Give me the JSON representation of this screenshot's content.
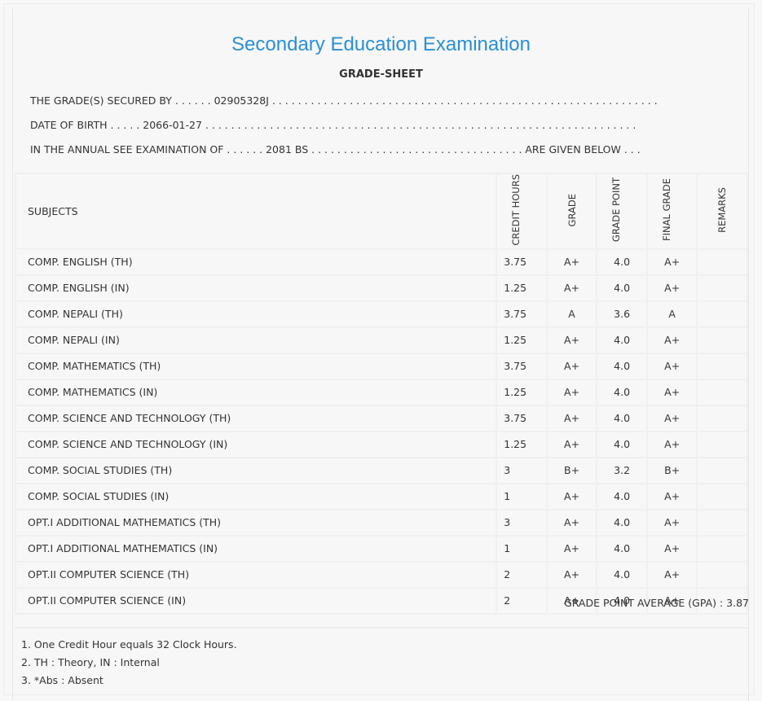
{
  "title": "Secondary Education Examination",
  "subtitle": "GRADE-SHEET",
  "lines": [
    "THE GRADE(S) SECURED BY . . . . . . 02905328J . . . . . . . . . . . . . . . . . . . . . . . . . . . . . . . . . . . . . . . . . . . . . . . . . . . . . . . . . . . .",
    "DATE OF BIRTH . . . . . 2066-01-27 . . . . . . . . . . . . . . . . . . . . . . . . . . . . . . . . . . . . . . . . . . . . . . . . . . . . . . . . . . . . . . . . . . .",
    "IN THE ANNUAL SEE EXAMINATION OF . . . . . . 2081 BS . . . . . . . . . . . . . . . . . . . . . . . . . . . . . . . . . ARE GIVEN BELOW . . ."
  ],
  "headers": {
    "subjects": "SUBJECTS",
    "credit_hours": "CREDIT HOURS",
    "grade": "GRADE",
    "grade_point": "GRADE POINT",
    "final_grade": "FINAL GRADE",
    "remarks": "REMARKS"
  },
  "rows": [
    {
      "subject": "COMP. ENGLISH (TH)",
      "credit": "3.75",
      "grade": "A+",
      "point": "4.0",
      "final": "A+",
      "remarks": ""
    },
    {
      "subject": "COMP. ENGLISH (IN)",
      "credit": "1.25",
      "grade": "A+",
      "point": "4.0",
      "final": "A+",
      "remarks": ""
    },
    {
      "subject": "COMP. NEPALI (TH)",
      "credit": "3.75",
      "grade": "A",
      "point": "3.6",
      "final": "A",
      "remarks": ""
    },
    {
      "subject": "COMP. NEPALI (IN)",
      "credit": "1.25",
      "grade": "A+",
      "point": "4.0",
      "final": "A+",
      "remarks": ""
    },
    {
      "subject": "COMP. MATHEMATICS (TH)",
      "credit": "3.75",
      "grade": "A+",
      "point": "4.0",
      "final": "A+",
      "remarks": ""
    },
    {
      "subject": "COMP. MATHEMATICS (IN)",
      "credit": "1.25",
      "grade": "A+",
      "point": "4.0",
      "final": "A+",
      "remarks": ""
    },
    {
      "subject": "COMP. SCIENCE AND TECHNOLOGY (TH)",
      "credit": "3.75",
      "grade": "A+",
      "point": "4.0",
      "final": "A+",
      "remarks": ""
    },
    {
      "subject": "COMP. SCIENCE AND TECHNOLOGY (IN)",
      "credit": "1.25",
      "grade": "A+",
      "point": "4.0",
      "final": "A+",
      "remarks": ""
    },
    {
      "subject": "COMP. SOCIAL STUDIES (TH)",
      "credit": "3",
      "grade": "B+",
      "point": "3.2",
      "final": "B+",
      "remarks": ""
    },
    {
      "subject": "COMP. SOCIAL STUDIES (IN)",
      "credit": "1",
      "grade": "A+",
      "point": "4.0",
      "final": "A+",
      "remarks": ""
    },
    {
      "subject": "OPT.I ADDITIONAL MATHEMATICS (TH)",
      "credit": "3",
      "grade": "A+",
      "point": "4.0",
      "final": "A+",
      "remarks": ""
    },
    {
      "subject": "OPT.I ADDITIONAL MATHEMATICS (IN)",
      "credit": "1",
      "grade": "A+",
      "point": "4.0",
      "final": "A+",
      "remarks": ""
    },
    {
      "subject": "OPT.II COMPUTER SCIENCE (TH)",
      "credit": "2",
      "grade": "A+",
      "point": "4.0",
      "final": "A+",
      "remarks": ""
    },
    {
      "subject": "OPT.II COMPUTER SCIENCE (IN)",
      "credit": "2",
      "grade": "A+",
      "point": "4.0",
      "final": "A+",
      "remarks": ""
    }
  ],
  "gpa": "GRADE POINT AVERAGE (GPA) : 3.87",
  "notes": [
    "1. One Credit Hour equals 32 Clock Hours.",
    "2. TH : Theory, IN : Internal",
    "3. *Abs : Absent"
  ],
  "colors": {
    "title": "#2a8fd6",
    "background": "#f7f7f7",
    "text": "#333333"
  }
}
